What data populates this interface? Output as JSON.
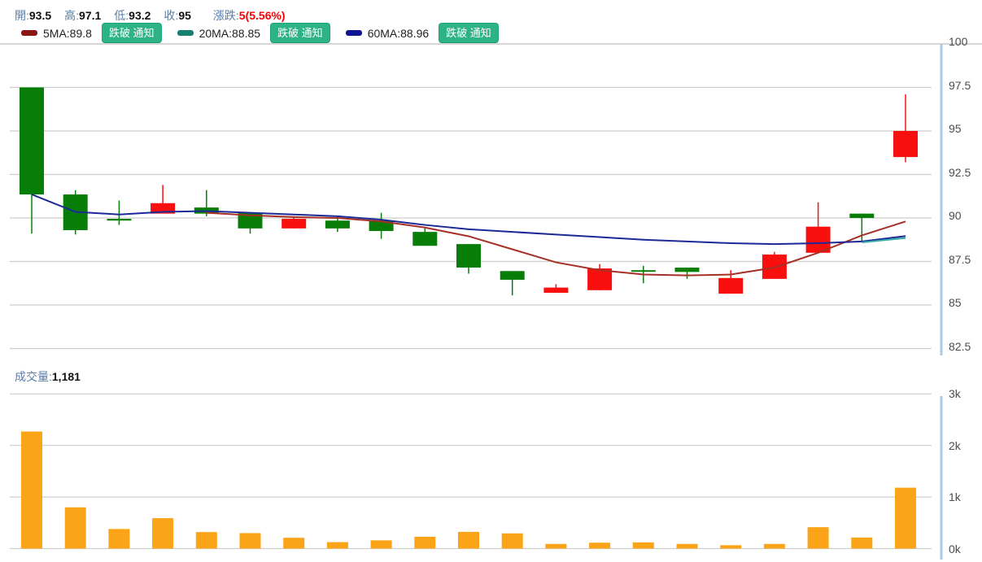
{
  "header": {
    "stats": [
      {
        "label": "開:",
        "value": "93.5"
      },
      {
        "label": "高:",
        "value": "97.1"
      },
      {
        "label": "低:",
        "value": "93.2"
      },
      {
        "label": "收:",
        "value": "95"
      },
      {
        "label": "漲跌:",
        "value": "5(5.56%)"
      }
    ],
    "ma_legend": [
      {
        "name": "5MA",
        "value": "89.8",
        "label": "5MA:89.8",
        "swatch_color": "#8b1414",
        "button": "跌破 通知"
      },
      {
        "name": "20MA",
        "value": "88.85",
        "label": "20MA:88.85",
        "swatch_color": "#17806e",
        "button": "跌破 通知"
      },
      {
        "name": "60MA",
        "value": "88.96",
        "label": "60MA:88.96",
        "swatch_color": "#10168f",
        "button": "跌破 通知"
      }
    ]
  },
  "volume_header": {
    "label": "成交量:",
    "value": "1,181"
  },
  "colors": {
    "up": "#fa0f0f",
    "down": "#087e08",
    "volume_bar": "#fba417",
    "grid": "#cdcdcd",
    "divider": "#d6d6d6",
    "axis_line": "#adc8e2",
    "axis_text": "#4c4c4c",
    "label_blue": "#5b7ca6",
    "change_red": "#fe0000",
    "button_green": "#2eb387"
  },
  "chart_data": [
    {
      "type": "candlestick",
      "title": "price",
      "grid": true,
      "legend_position": "top",
      "ylim": [
        82.5,
        100
      ],
      "y_ticks": [
        100,
        97.5,
        95,
        92.5,
        90,
        87.5,
        85,
        82.5
      ],
      "y_tick_labels": [
        "100",
        "97.5",
        "95",
        "92.5",
        "90",
        "87.5",
        "85",
        "82.5"
      ],
      "candles": [
        {
          "open": 97.5,
          "high": 97.5,
          "low": 89.1,
          "close": 91.35
        },
        {
          "open": 91.35,
          "high": 91.6,
          "low": 89.05,
          "close": 89.3
        },
        {
          "open": 89.95,
          "high": 91.0,
          "low": 89.6,
          "close": 89.85
        },
        {
          "open": 90.25,
          "high": 91.9,
          "low": 90.25,
          "close": 90.85
        },
        {
          "open": 90.6,
          "high": 91.6,
          "low": 90.1,
          "close": 90.25
        },
        {
          "open": 90.3,
          "high": 90.3,
          "low": 89.1,
          "close": 89.4
        },
        {
          "open": 89.4,
          "high": 90.1,
          "low": 89.4,
          "close": 89.95
        },
        {
          "open": 89.85,
          "high": 90.1,
          "low": 89.2,
          "close": 89.4
        },
        {
          "open": 89.85,
          "high": 90.3,
          "low": 88.8,
          "close": 89.25
        },
        {
          "open": 89.2,
          "high": 89.4,
          "low": 88.4,
          "close": 88.4
        },
        {
          "open": 88.5,
          "high": 88.5,
          "low": 86.8,
          "close": 87.15
        },
        {
          "open": 86.95,
          "high": 86.95,
          "low": 85.55,
          "close": 86.45
        },
        {
          "open": 85.7,
          "high": 86.2,
          "low": 85.7,
          "close": 86.0
        },
        {
          "open": 85.85,
          "high": 87.35,
          "low": 85.85,
          "close": 87.1
        },
        {
          "open": 87.0,
          "high": 87.25,
          "low": 86.25,
          "close": 86.95
        },
        {
          "open": 87.15,
          "high": 87.15,
          "low": 86.5,
          "close": 86.9
        },
        {
          "open": 85.65,
          "high": 87.0,
          "low": 85.65,
          "close": 86.55
        },
        {
          "open": 86.5,
          "high": 88.05,
          "low": 86.5,
          "close": 87.9
        },
        {
          "open": 88.0,
          "high": 90.9,
          "low": 88.0,
          "close": 89.5
        },
        {
          "open": 90.25,
          "high": 90.25,
          "low": 88.6,
          "close": 90.0
        },
        {
          "open": 93.5,
          "high": 97.1,
          "low": 93.2,
          "close": 95.0
        }
      ],
      "ma_series": [
        {
          "name": "5MA",
          "color": "#a63025",
          "start_index": 4,
          "values": [
            90.3,
            90.15,
            90.05,
            90.0,
            89.8,
            89.45,
            88.95,
            88.2,
            87.45,
            87.0,
            86.75,
            86.7,
            86.75,
            87.15,
            88.0,
            89.0,
            89.8
          ]
        },
        {
          "name": "20MA",
          "color": "#35a7a7",
          "start_index": 19,
          "values": [
            88.6,
            88.85
          ]
        },
        {
          "name": "60MA",
          "color": "#1b2a96",
          "start_index": 0,
          "values": [
            91.35,
            90.35,
            90.2,
            90.35,
            90.4,
            90.3,
            90.2,
            90.1,
            89.9,
            89.6,
            89.35,
            89.2,
            89.05,
            88.9,
            88.75,
            88.65,
            88.55,
            88.5,
            88.55,
            88.65,
            88.96
          ]
        }
      ]
    },
    {
      "type": "bar",
      "title": "成交量",
      "last_value": 1181,
      "color": "#fba417",
      "ylim": [
        0,
        3000
      ],
      "y_ticks": [
        3000,
        2000,
        1000,
        0
      ],
      "y_tick_labels": [
        "3k",
        "2k",
        "1k",
        "0k"
      ],
      "values": [
        2270,
        800,
        380,
        590,
        320,
        300,
        210,
        125,
        160,
        230,
        325,
        295,
        90,
        115,
        120,
        90,
        65,
        90,
        415,
        215,
        1181
      ]
    }
  ]
}
